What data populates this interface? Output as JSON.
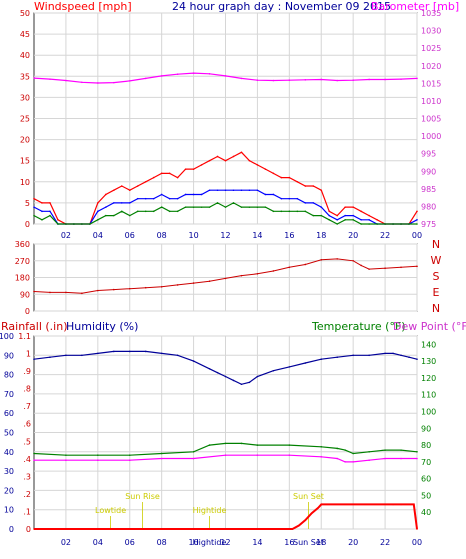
{
  "header": {
    "left_label": "Windspeed [mph]",
    "title": "24 hour graph day : November 09 2015",
    "right_label": "Barometer [mb]"
  },
  "colors": {
    "frame": "#333333",
    "grid": "#d6d6d6",
    "wind_gust": "#ff0000",
    "wind_avg": "#0000ff",
    "wind_low": "#008000",
    "barometer": "#ff00ff",
    "direction": "#cc0000",
    "humidity": "#000099",
    "temperature": "#008000",
    "dewpoint": "#ff00ff",
    "rainfall": "#ff0000",
    "event_label": "#cccc00"
  },
  "chart_data": [
    {
      "type": "line",
      "title": "24 hour graph day : November 09 2015",
      "xlabel": "",
      "x_ticks": [
        "02",
        "04",
        "06",
        "08",
        "10",
        "12",
        "14",
        "16",
        "18",
        "20",
        "22",
        "00"
      ],
      "x_range": [
        0,
        24
      ],
      "ylabel": "Windspeed [mph]",
      "ylim": [
        0,
        50
      ],
      "y_ticks": [
        0,
        5,
        10,
        15,
        20,
        25,
        30,
        35,
        40,
        45,
        50
      ],
      "y2label": "Barometer [mb]",
      "y2lim": [
        975,
        1035
      ],
      "y2_ticks": [
        975,
        980,
        985,
        990,
        995,
        1000,
        1005,
        1010,
        1015,
        1020,
        1025,
        1030,
        1035
      ],
      "grid": true,
      "series": [
        {
          "axis": "y",
          "color": "#ff0000",
          "x": [
            0,
            0.5,
            1,
            1.5,
            2,
            2.5,
            3,
            3.5,
            4,
            4.5,
            5,
            5.5,
            6,
            6.5,
            7,
            7.5,
            8,
            8.5,
            9,
            9.5,
            10,
            10.5,
            11,
            11.5,
            12,
            12.5,
            13,
            13.5,
            14,
            14.5,
            15,
            15.5,
            16,
            16.5,
            17,
            17.5,
            18,
            18.5,
            19,
            19.5,
            20,
            20.5,
            21,
            21.5,
            22,
            22.5,
            23,
            23.5,
            24
          ],
          "values": [
            6,
            5,
            5,
            1,
            0,
            0,
            0,
            0,
            5,
            7,
            8,
            9,
            8,
            9,
            10,
            11,
            12,
            12,
            11,
            13,
            13,
            14,
            15,
            16,
            15,
            16,
            17,
            15,
            14,
            13,
            12,
            11,
            11,
            10,
            9,
            9,
            8,
            3,
            2,
            4,
            4,
            3,
            2,
            1,
            0,
            0,
            0,
            0,
            3
          ]
        },
        {
          "axis": "y",
          "color": "#0000ff",
          "x": [
            0,
            0.5,
            1,
            1.5,
            2,
            2.5,
            3,
            3.5,
            4,
            4.5,
            5,
            5.5,
            6,
            6.5,
            7,
            7.5,
            8,
            8.5,
            9,
            9.5,
            10,
            10.5,
            11,
            11.5,
            12,
            12.5,
            13,
            13.5,
            14,
            14.5,
            15,
            15.5,
            16,
            16.5,
            17,
            17.5,
            18,
            18.5,
            19,
            19.5,
            20,
            20.5,
            21,
            21.5,
            22,
            22.5,
            23,
            23.5,
            24
          ],
          "values": [
            4,
            3,
            3,
            0,
            0,
            0,
            0,
            0,
            3,
            4,
            5,
            5,
            5,
            6,
            6,
            6,
            7,
            6,
            6,
            7,
            7,
            7,
            8,
            8,
            8,
            8,
            8,
            8,
            8,
            7,
            7,
            6,
            6,
            6,
            5,
            5,
            4,
            2,
            1,
            2,
            2,
            1,
            1,
            0,
            0,
            0,
            0,
            0,
            1
          ]
        },
        {
          "axis": "y",
          "color": "#008000",
          "x": [
            0,
            0.5,
            1,
            1.5,
            2,
            2.5,
            3,
            3.5,
            4,
            4.5,
            5,
            5.5,
            6,
            6.5,
            7,
            7.5,
            8,
            8.5,
            9,
            9.5,
            10,
            10.5,
            11,
            11.5,
            12,
            12.5,
            13,
            13.5,
            14,
            14.5,
            15,
            15.5,
            16,
            16.5,
            17,
            17.5,
            18,
            18.5,
            19,
            19.5,
            20,
            20.5,
            21,
            21.5,
            22,
            22.5,
            23,
            23.5,
            24
          ],
          "values": [
            2,
            1,
            2,
            0,
            0,
            0,
            0,
            0,
            1,
            2,
            2,
            3,
            2,
            3,
            3,
            3,
            4,
            3,
            3,
            4,
            4,
            4,
            4,
            5,
            4,
            5,
            4,
            4,
            4,
            4,
            3,
            3,
            3,
            3,
            3,
            2,
            2,
            1,
            0,
            1,
            1,
            0,
            0,
            0,
            0,
            0,
            0,
            0,
            0
          ]
        },
        {
          "axis": "y2",
          "color": "#ff00ff",
          "x": [
            0,
            1,
            2,
            3,
            4,
            5,
            6,
            7,
            8,
            9,
            10,
            11,
            12,
            13,
            14,
            15,
            16,
            17,
            18,
            19,
            20,
            21,
            22,
            23,
            24
          ],
          "values": [
            1016.5,
            1016.2,
            1015.8,
            1015.3,
            1015.1,
            1015.2,
            1015.7,
            1016.4,
            1017.1,
            1017.6,
            1017.9,
            1017.7,
            1017.1,
            1016.4,
            1015.9,
            1015.8,
            1015.9,
            1016.0,
            1016.1,
            1015.8,
            1015.9,
            1016.1,
            1016.1,
            1016.2,
            1016.4
          ]
        }
      ]
    },
    {
      "type": "line",
      "xlabel": "",
      "x_ticks": [
        "02",
        "04",
        "06",
        "08",
        "10",
        "12",
        "14",
        "16",
        "18",
        "20",
        "22",
        "00"
      ],
      "x_range": [
        0,
        24
      ],
      "ylim": [
        0,
        360
      ],
      "y_ticks": [
        0,
        90,
        180,
        270,
        360
      ],
      "direction_labels": [
        "N",
        "W",
        "S",
        "E",
        "N"
      ],
      "grid": true,
      "series": [
        {
          "color": "#cc0000",
          "x": [
            0,
            1,
            2,
            3,
            4,
            5,
            6,
            7,
            8,
            9,
            10,
            11,
            12,
            13,
            14,
            15,
            16,
            17,
            18,
            19,
            20,
            20.5,
            21,
            22,
            23,
            24
          ],
          "values": [
            105,
            100,
            100,
            95,
            110,
            115,
            120,
            125,
            130,
            140,
            150,
            160,
            175,
            190,
            200,
            215,
            235,
            250,
            275,
            280,
            270,
            245,
            225,
            230,
            235,
            240
          ]
        }
      ]
    },
    {
      "type": "line",
      "xlabel": "",
      "x_ticks": [
        "02",
        "04",
        "06",
        "08",
        "10",
        "12",
        "14",
        "16",
        "18",
        "20",
        "22",
        "00"
      ],
      "x_range": [
        0,
        24
      ],
      "ylabel_left_1": "Rainfall (.in)",
      "ylabel_left_2": "Humidity (%)",
      "ylabel_right_1": "Temperature (°F)",
      "ylabel_right_2": "Dew Point (°F)",
      "humidity_ylim": [
        0,
        100
      ],
      "humidity_ticks": [
        0,
        10,
        20,
        30,
        40,
        50,
        60,
        70,
        80,
        90,
        100
      ],
      "rain_ylim": [
        0,
        1.1
      ],
      "rain_ticks": [
        "0",
        ".1",
        ".2",
        ".3",
        ".4",
        ".5",
        ".6",
        ".7",
        ".8",
        ".9",
        "1",
        "1.1"
      ],
      "temp_ylim": [
        30,
        145
      ],
      "temp_ticks": [
        40,
        50,
        60,
        70,
        80,
        90,
        100,
        110,
        120,
        130,
        140
      ],
      "grid": true,
      "events": [
        {
          "label": "Lowtide",
          "x": 4.8
        },
        {
          "label": "Sun Rise",
          "x": 6.8
        },
        {
          "label": "Hightide",
          "x": 11.0
        },
        {
          "label": "Sun Set",
          "x": 17.2
        }
      ],
      "bottom_overlays": [
        "Hightide",
        "Sun Set"
      ],
      "series": [
        {
          "name": "Humidity (%)",
          "axis": "humidity",
          "color": "#000099",
          "x": [
            0,
            1,
            2,
            3,
            4,
            5,
            6,
            7,
            8,
            9,
            10,
            11,
            11.5,
            12,
            12.5,
            13,
            13.5,
            14,
            15,
            16,
            17,
            18,
            19,
            20,
            21,
            22,
            22.5,
            23,
            23.5,
            24
          ],
          "values": [
            88,
            89,
            90,
            90,
            91,
            92,
            92,
            92,
            91,
            90,
            87,
            83,
            81,
            79,
            77,
            75,
            76,
            79,
            82,
            84,
            86,
            88,
            89,
            90,
            90,
            91,
            91,
            90,
            89,
            88
          ]
        },
        {
          "name": "Temperature (°F)",
          "axis": "temp",
          "color": "#008000",
          "x": [
            0,
            2,
            4,
            6,
            8,
            10,
            11,
            12,
            13,
            14,
            16,
            18,
            19,
            19.5,
            20,
            21,
            22,
            23,
            24
          ],
          "values": [
            75,
            74,
            74,
            74,
            75,
            76,
            80,
            81,
            81,
            80,
            80,
            79,
            78,
            77,
            75,
            76,
            77,
            77,
            76
          ]
        },
        {
          "name": "Dew Point (°F)",
          "axis": "temp",
          "color": "#ff00ff",
          "x": [
            0,
            2,
            4,
            6,
            8,
            10,
            12,
            14,
            16,
            18,
            19,
            19.5,
            20,
            21,
            22,
            23,
            24
          ],
          "values": [
            71,
            71,
            71,
            71,
            72,
            72,
            74,
            74,
            74,
            73,
            72,
            70,
            70,
            71,
            72,
            72,
            72
          ]
        },
        {
          "name": "Rainfall (.in)",
          "axis": "rain",
          "color": "#ff0000",
          "x": [
            0,
            16.2,
            16.6,
            17.0,
            17.4,
            17.8,
            18.0,
            22.5,
            23.0,
            23.8,
            24
          ],
          "values": [
            0,
            0,
            0.02,
            0.05,
            0.09,
            0.12,
            0.14,
            0.14,
            0.14,
            0.14,
            0
          ]
        }
      ]
    }
  ]
}
